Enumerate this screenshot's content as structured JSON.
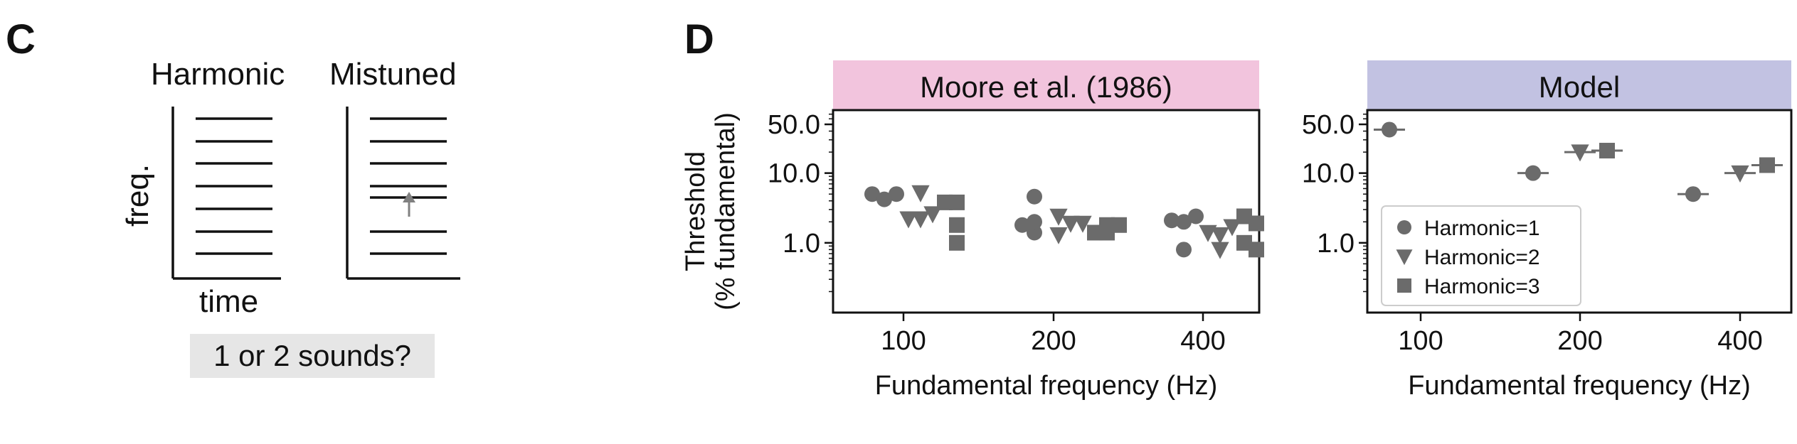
{
  "panels": {
    "c": {
      "letter": "C",
      "harmonic_title": "Harmonic",
      "mistuned_title": "Mistuned",
      "ylabel": "freq.",
      "xlabel": "time",
      "question": "1 or 2 sounds?"
    },
    "d": {
      "letter": "D"
    }
  },
  "colors": {
    "marker": "#6b6b6b",
    "moore_header": "#f2c4dd",
    "model_header": "#c2c2e2",
    "question_bg": "#e6e6e6"
  },
  "legend": [
    {
      "marker": "circle",
      "label": "Harmonic=1"
    },
    {
      "marker": "triangle-down",
      "label": "Harmonic=2"
    },
    {
      "marker": "square",
      "label": "Harmonic=3"
    }
  ],
  "chart_data": [
    {
      "type": "scatter",
      "title": "Moore et al. (1986)",
      "xlabel": "Fundamental frequency (Hz)",
      "ylabel": [
        "Threshold",
        "(% fundamental)"
      ],
      "x_ticks": [
        "100",
        "200",
        "400"
      ],
      "y_scale": "log",
      "y_ticks": [
        "1.0",
        "10.0",
        "50.0"
      ],
      "ylim": [
        0.1,
        80
      ],
      "grid": false,
      "series": [
        {
          "name": "Harmonic=1",
          "marker": "circle",
          "points": [
            {
              "x": "100",
              "offset": -2,
              "y": 5.0
            },
            {
              "x": "100",
              "offset": -1,
              "y": 4.2
            },
            {
              "x": "100",
              "offset": 0,
              "y": 5.0
            },
            {
              "x": "200",
              "offset": -2,
              "y": 1.8
            },
            {
              "x": "200",
              "offset": -1,
              "y": 1.4
            },
            {
              "x": "200",
              "offset": -1,
              "y": 4.6
            },
            {
              "x": "200",
              "offset": -1,
              "y": 2.0
            },
            {
              "x": "400",
              "offset": -2,
              "y": 2.1
            },
            {
              "x": "400",
              "offset": -1,
              "y": 0.8
            },
            {
              "x": "400",
              "offset": -1,
              "y": 2.0
            },
            {
              "x": "400",
              "offset": 0,
              "y": 2.4
            }
          ]
        },
        {
          "name": "Harmonic=2",
          "marker": "triangle-down",
          "points": [
            {
              "x": "100",
              "offset": 1,
              "y": 2.2
            },
            {
              "x": "100",
              "offset": 2,
              "y": 2.2
            },
            {
              "x": "100",
              "offset": 2,
              "y": 5.2
            },
            {
              "x": "100",
              "offset": 3,
              "y": 2.6
            },
            {
              "x": "200",
              "offset": 1,
              "y": 2.4
            },
            {
              "x": "200",
              "offset": 1,
              "y": 1.3
            },
            {
              "x": "200",
              "offset": 2,
              "y": 1.9
            },
            {
              "x": "200",
              "offset": 3,
              "y": 1.9
            },
            {
              "x": "400",
              "offset": 1,
              "y": 1.4
            },
            {
              "x": "400",
              "offset": 2,
              "y": 1.3
            },
            {
              "x": "400",
              "offset": 2,
              "y": 0.8
            },
            {
              "x": "400",
              "offset": 3,
              "y": 1.7
            }
          ]
        },
        {
          "name": "Harmonic=3",
          "marker": "square",
          "points": [
            {
              "x": "100",
              "offset": 4,
              "y": 3.8
            },
            {
              "x": "100",
              "offset": 5,
              "y": 3.8
            },
            {
              "x": "100",
              "offset": 5,
              "y": 1.8
            },
            {
              "x": "100",
              "offset": 5,
              "y": 1.0
            },
            {
              "x": "200",
              "offset": 4,
              "y": 1.4
            },
            {
              "x": "200",
              "offset": 5,
              "y": 1.8
            },
            {
              "x": "200",
              "offset": 5,
              "y": 1.4
            },
            {
              "x": "200",
              "offset": 6,
              "y": 1.8
            },
            {
              "x": "400",
              "offset": 4,
              "y": 2.4
            },
            {
              "x": "400",
              "offset": 4,
              "y": 1.0
            },
            {
              "x": "400",
              "offset": 5,
              "y": 1.9
            },
            {
              "x": "400",
              "offset": 5,
              "y": 0.8
            }
          ]
        }
      ]
    },
    {
      "type": "scatter",
      "title": "Model",
      "xlabel": "Fundamental frequency (Hz)",
      "ylabel": [],
      "x_ticks": [
        "100",
        "200",
        "400"
      ],
      "y_scale": "log",
      "y_ticks": [
        "1.0",
        "10.0",
        "50.0"
      ],
      "ylim": [
        0.1,
        80
      ],
      "grid": false,
      "legend_position": "lower-left",
      "series": [
        {
          "name": "Harmonic=1",
          "marker": "circle",
          "points": [
            {
              "x": "100",
              "y": 42
            },
            {
              "x": "200",
              "y": 10
            },
            {
              "x": "400",
              "y": 5
            }
          ]
        },
        {
          "name": "Harmonic=2",
          "marker": "triangle-down",
          "points": [
            {
              "x": "200",
              "y": 20
            },
            {
              "x": "400",
              "y": 10
            }
          ]
        },
        {
          "name": "Harmonic=3",
          "marker": "square",
          "points": [
            {
              "x": "200",
              "y": 21
            },
            {
              "x": "400",
              "y": 13
            }
          ]
        }
      ]
    }
  ]
}
